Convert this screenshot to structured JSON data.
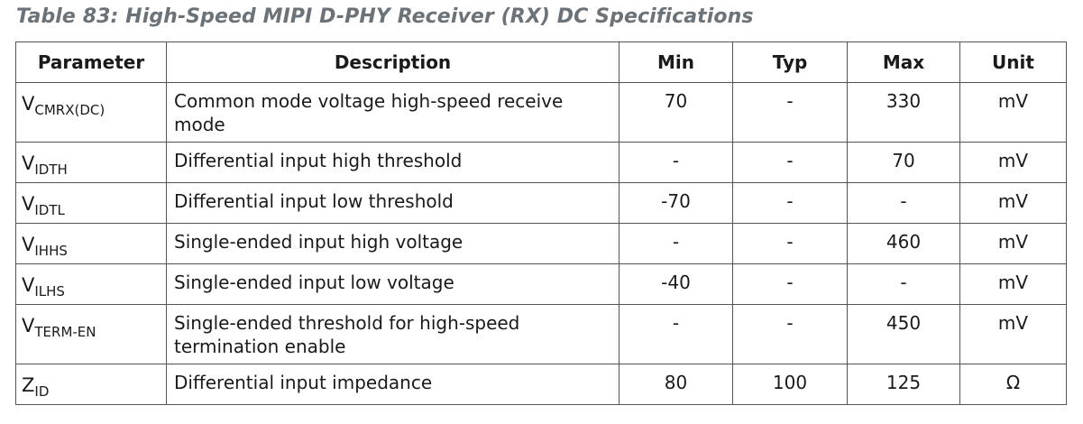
{
  "caption": "Table 83: High-Speed MIPI D-PHY Receiver (RX) DC Specifications",
  "headers": {
    "parameter": "Parameter",
    "description": "Description",
    "min": "Min",
    "typ": "Typ",
    "max": "Max",
    "unit": "Unit"
  },
  "rows": [
    {
      "sym": "V",
      "sub": "CMRX(DC)",
      "description": "Common mode voltage high-speed receive mode",
      "min": "70",
      "typ": "-",
      "max": "330",
      "unit": "mV"
    },
    {
      "sym": "V",
      "sub": "IDTH",
      "description": "Differential input high threshold",
      "min": "-",
      "typ": "-",
      "max": "70",
      "unit": "mV"
    },
    {
      "sym": "V",
      "sub": "IDTL",
      "description": "Differential input low threshold",
      "min": "-70",
      "typ": "-",
      "max": "-",
      "unit": "mV"
    },
    {
      "sym": "V",
      "sub": "IHHS",
      "description": "Single-ended input high voltage",
      "min": "-",
      "typ": "-",
      "max": "460",
      "unit": "mV"
    },
    {
      "sym": "V",
      "sub": "ILHS",
      "description": "Single-ended input low voltage",
      "min": "-40",
      "typ": "-",
      "max": "-",
      "unit": "mV"
    },
    {
      "sym": "V",
      "sub": "TERM-EN",
      "description": "Single-ended threshold for high-speed termination enable",
      "min": "-",
      "typ": "-",
      "max": "450",
      "unit": "mV"
    },
    {
      "sym": "Z",
      "sub": "ID",
      "description": "Differential input impedance",
      "min": "80",
      "typ": "100",
      "max": "125",
      "unit": "Ω"
    }
  ]
}
